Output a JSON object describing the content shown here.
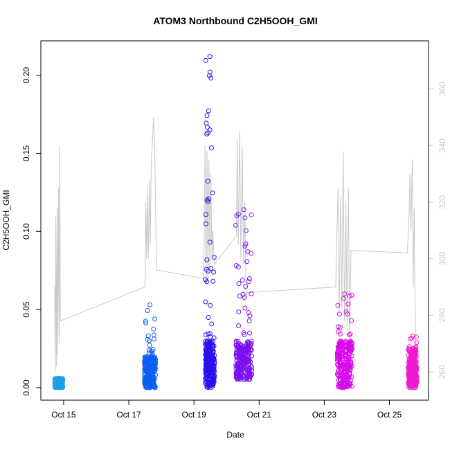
{
  "chart_data": {
    "type": "scatter",
    "title": "ATOM3 Northbound C2H5OOH_GMI",
    "xlabel": "Date",
    "ylabel": "C2H5OOH_GMI",
    "x_ticks": [
      "Oct 15",
      "Oct 17",
      "Oct 19",
      "Oct 21",
      "Oct 23",
      "Oct 25"
    ],
    "x_tick_days": [
      15,
      17,
      19,
      21,
      23,
      25
    ],
    "xlim_days": [
      14.3,
      26.2
    ],
    "ylim": [
      -0.008,
      0.222
    ],
    "y_ticks": [
      "0.00",
      "0.05",
      "0.10",
      "0.15",
      "0.20"
    ],
    "y_tick_values": [
      0.0,
      0.05,
      0.1,
      0.15,
      0.2
    ],
    "y2_lim": [
      250,
      377
    ],
    "y2_ticks": [
      "260",
      "280",
      "300",
      "320",
      "340",
      "360"
    ],
    "y2_tick_values": [
      260,
      280,
      300,
      320,
      340,
      360
    ],
    "y2_color": "#c8c8c8",
    "grid": false,
    "scatter_series": [
      {
        "start_day": 14.73,
        "end_day": 14.97,
        "min": 0.0,
        "max": 0.006,
        "peak": 0.006,
        "color": "#1aa0e6"
      },
      {
        "start_day": 17.48,
        "end_day": 17.82,
        "min": 0.0,
        "max": 0.02,
        "peak": 0.053,
        "color": "#0b5ff2"
      },
      {
        "start_day": 19.35,
        "end_day": 19.63,
        "min": 0.0,
        "max": 0.03,
        "peak": 0.212,
        "color": "#2a0ff0"
      },
      {
        "start_day": 20.28,
        "end_day": 20.78,
        "min": 0.005,
        "max": 0.03,
        "peak": 0.114,
        "color": "#7a10ee"
      },
      {
        "start_day": 23.4,
        "end_day": 23.85,
        "min": 0.0,
        "max": 0.03,
        "peak": 0.06,
        "color": "#d70ae8"
      },
      {
        "start_day": 25.58,
        "end_day": 25.85,
        "min": 0.0,
        "max": 0.025,
        "peak": 0.033,
        "color": "#f01ad0"
      }
    ],
    "line_series": [
      {
        "day": 14.72,
        "y2": 290
      },
      {
        "day": 14.74,
        "y2": 260
      },
      {
        "day": 14.76,
        "y2": 315
      },
      {
        "day": 14.78,
        "y2": 262
      },
      {
        "day": 14.8,
        "y2": 318
      },
      {
        "day": 14.82,
        "y2": 266
      },
      {
        "day": 14.84,
        "y2": 325
      },
      {
        "day": 14.86,
        "y2": 270
      },
      {
        "day": 14.88,
        "y2": 340
      },
      {
        "day": 14.9,
        "y2": 278
      },
      {
        "day": 17.5,
        "y2": 290
      },
      {
        "day": 17.52,
        "y2": 320
      },
      {
        "day": 17.55,
        "y2": 300
      },
      {
        "day": 17.57,
        "y2": 325
      },
      {
        "day": 17.6,
        "y2": 300
      },
      {
        "day": 17.63,
        "y2": 328
      },
      {
        "day": 17.66,
        "y2": 305
      },
      {
        "day": 17.69,
        "y2": 335
      },
      {
        "day": 17.72,
        "y2": 340
      },
      {
        "day": 17.76,
        "y2": 350
      },
      {
        "day": 17.8,
        "y2": 335
      },
      {
        "day": 17.85,
        "y2": 296
      },
      {
        "day": 19.3,
        "y2": 293
      },
      {
        "day": 19.34,
        "y2": 340
      },
      {
        "day": 19.37,
        "y2": 290
      },
      {
        "day": 19.4,
        "y2": 338
      },
      {
        "day": 19.43,
        "y2": 292
      },
      {
        "day": 19.46,
        "y2": 335
      },
      {
        "day": 19.49,
        "y2": 295
      },
      {
        "day": 19.52,
        "y2": 330
      },
      {
        "day": 19.55,
        "y2": 300
      },
      {
        "day": 19.58,
        "y2": 310
      },
      {
        "day": 19.62,
        "y2": 298
      },
      {
        "day": 20.3,
        "y2": 308
      },
      {
        "day": 20.33,
        "y2": 342
      },
      {
        "day": 20.36,
        "y2": 305
      },
      {
        "day": 20.4,
        "y2": 345
      },
      {
        "day": 20.44,
        "y2": 300
      },
      {
        "day": 20.48,
        "y2": 340
      },
      {
        "day": 20.52,
        "y2": 298
      },
      {
        "day": 20.56,
        "y2": 320
      },
      {
        "day": 20.6,
        "y2": 286
      },
      {
        "day": 20.64,
        "y2": 288
      },
      {
        "day": 23.35,
        "y2": 290
      },
      {
        "day": 23.42,
        "y2": 325
      },
      {
        "day": 23.46,
        "y2": 280
      },
      {
        "day": 23.5,
        "y2": 322
      },
      {
        "day": 23.54,
        "y2": 282
      },
      {
        "day": 23.58,
        "y2": 338
      },
      {
        "day": 23.62,
        "y2": 278
      },
      {
        "day": 23.66,
        "y2": 320
      },
      {
        "day": 23.7,
        "y2": 276
      },
      {
        "day": 23.74,
        "y2": 325
      },
      {
        "day": 23.78,
        "y2": 270
      },
      {
        "day": 23.82,
        "y2": 303
      },
      {
        "day": 25.55,
        "y2": 302
      },
      {
        "day": 25.6,
        "y2": 315
      },
      {
        "day": 25.63,
        "y2": 330
      },
      {
        "day": 25.66,
        "y2": 310
      },
      {
        "day": 25.7,
        "y2": 335
      },
      {
        "day": 25.73,
        "y2": 290
      },
      {
        "day": 25.76,
        "y2": 318
      },
      {
        "day": 25.8,
        "y2": 270
      },
      {
        "day": 25.84,
        "y2": 262
      }
    ]
  }
}
